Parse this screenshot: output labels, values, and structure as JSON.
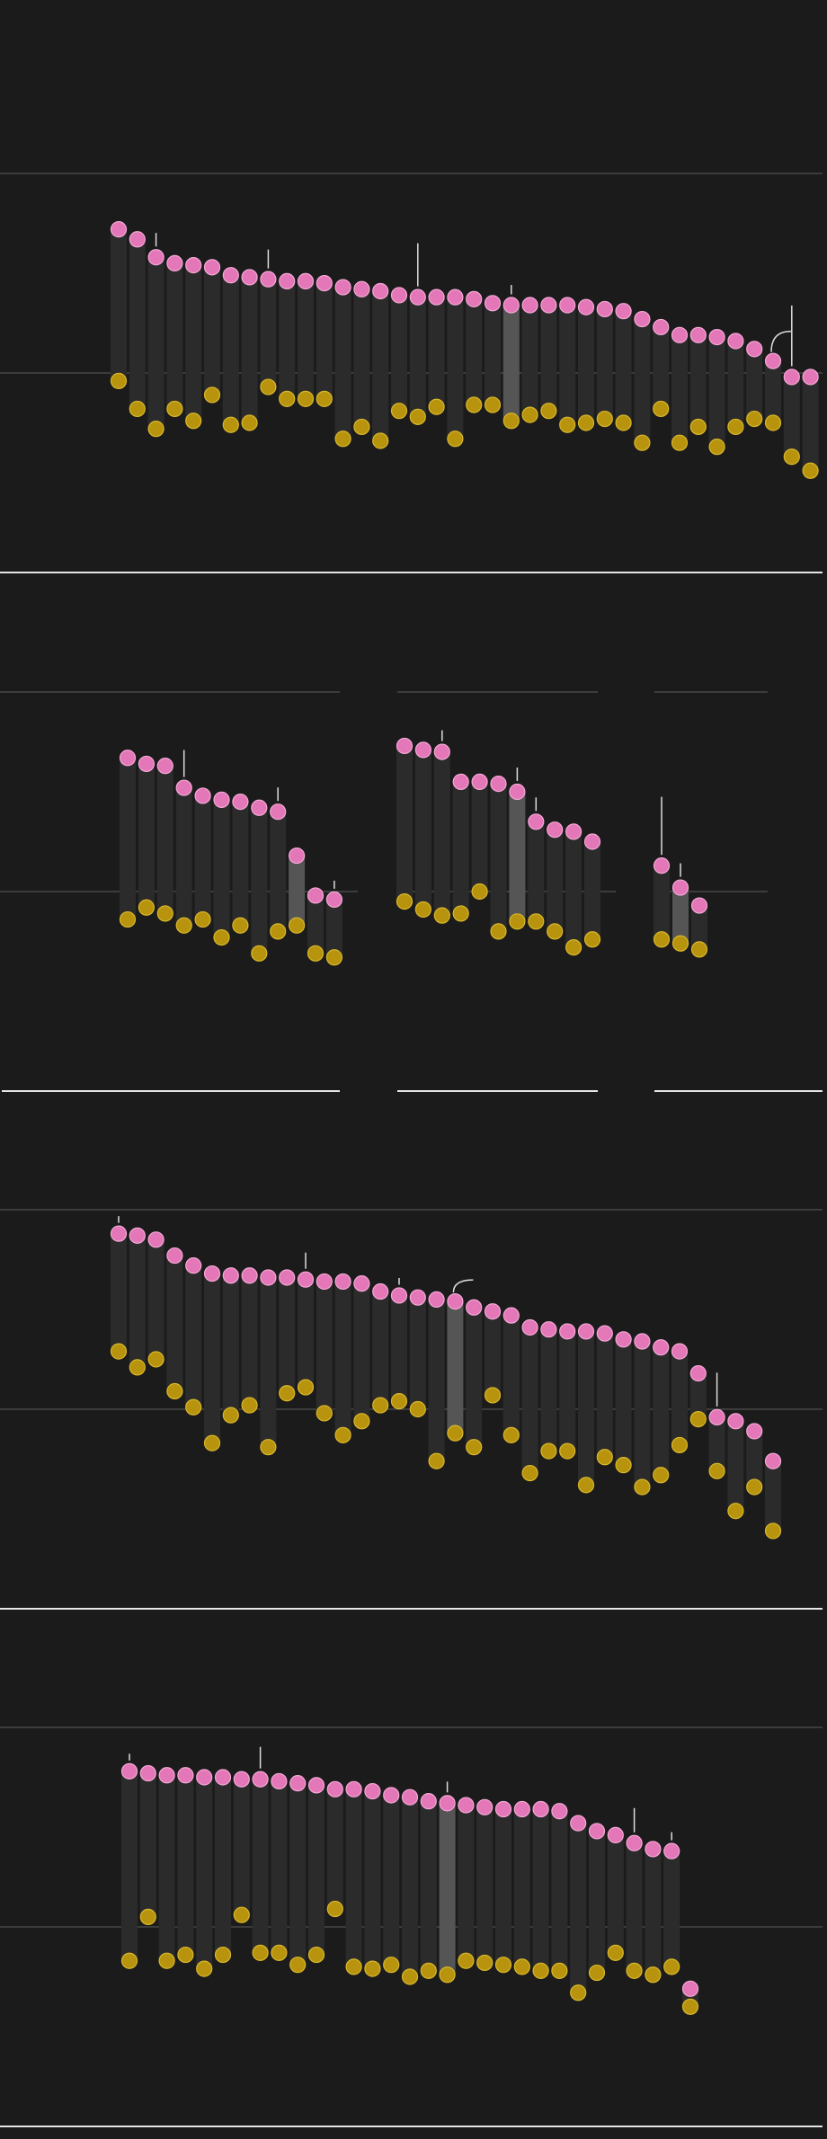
{
  "colors": {
    "background": "#1b1b1b",
    "bar": "#2b2b2b",
    "bar_highlight": "#555555",
    "pink_point": "#e377b8",
    "pink_stroke": "#f5a8d6",
    "gold_point": "#b8940e",
    "gold_stroke": "#d9b72c",
    "gridline": "#5e5e5e",
    "baseline": "#e6e6e6",
    "annotation": "#dddddd"
  },
  "chart_data": [
    {
      "type": "dot-bar",
      "ylim": [
        -55,
        100
      ],
      "grid": true,
      "series": [
        {
          "color_key": "pink",
          "values": [
            72,
            67,
            58,
            55,
            54,
            53,
            49,
            48,
            47,
            46,
            46,
            45,
            43,
            42,
            41,
            39,
            38,
            38,
            38,
            37,
            35,
            34,
            34,
            34,
            34,
            33,
            32,
            31,
            27,
            23,
            19,
            19,
            18,
            16,
            12,
            6,
            -2,
            -2
          ]
        },
        {
          "color_key": "gold",
          "values": [
            -4,
            -18,
            -28,
            -18,
            -24,
            -11,
            -26,
            -25,
            -7,
            -13,
            -13,
            -13,
            -33,
            -27,
            -34,
            -19,
            -22,
            -17,
            -33,
            -16,
            -16,
            -24,
            -21,
            -19,
            -26,
            -25,
            -23,
            -25,
            -35,
            -18,
            -35,
            -27,
            -37,
            -27,
            -23,
            -25,
            -42,
            -49
          ]
        }
      ],
      "annotations": [
        {
          "after_index": 2,
          "type": "line",
          "length": 10
        },
        {
          "after_index": 8,
          "type": "line",
          "length": 14
        },
        {
          "after_index": 16,
          "type": "line",
          "length": 32
        },
        {
          "after_index": 21,
          "type": "line",
          "length": 7
        },
        {
          "after_index": 35,
          "type": "arc",
          "length": 14
        },
        {
          "after_index": 36,
          "type": "line",
          "length": 45
        }
      ],
      "highlight_index": 21
    },
    {
      "type": "dot-bar",
      "ylim": [
        -55,
        100
      ],
      "grid": true,
      "panels": [
        {
          "series": [
            {
              "color_key": "pink",
              "values": [
                67,
                64,
                63,
                52,
                48,
                46,
                45,
                42,
                40,
                18,
                -2,
                -4
              ]
            },
            {
              "color_key": "gold",
              "values": [
                -14,
                -8,
                -11,
                -17,
                -14,
                -23,
                -17,
                -31,
                -20,
                -17,
                -31,
                -33
              ]
            }
          ],
          "highlight_index": 9
        },
        {
          "series": [
            {
              "color_key": "pink",
              "values": [
                73,
                71,
                70,
                55,
                55,
                54,
                50,
                35,
                31,
                30,
                25
              ]
            },
            {
              "color_key": "gold",
              "values": [
                -5,
                -9,
                -12,
                -11,
                0,
                -20,
                -15,
                -15,
                -20,
                -28,
                -24
              ]
            },
            {
              "color_key": "pink-annot"
            }
          ],
          "highlight_index": 6
        },
        {
          "series": [
            {
              "color_key": "pink",
              "values": [
                13,
                2,
                -7
              ]
            },
            {
              "color_key": "gold",
              "values": [
                -24,
                -26,
                -29
              ]
            }
          ],
          "highlight_index": 1
        }
      ]
    },
    {
      "type": "dot-bar",
      "ylim": [
        -55,
        100
      ],
      "grid": true,
      "series": [
        {
          "color_key": "pink",
          "values": [
            88,
            87,
            85,
            77,
            72,
            68,
            67,
            67,
            66,
            66,
            65,
            64,
            64,
            63,
            59,
            57,
            56,
            55,
            54,
            51,
            49,
            47,
            41,
            40,
            39,
            39,
            38,
            35,
            34,
            31,
            29,
            18,
            -4,
            -6,
            -11,
            -26
          ]
        },
        {
          "color_key": "gold",
          "values": [
            29,
            21,
            25,
            9,
            1,
            -17,
            -3,
            2,
            -19,
            8,
            11,
            -2,
            -13,
            -6,
            2,
            4,
            0,
            -26,
            -12,
            -19,
            7,
            -13,
            -32,
            -21,
            -21,
            -38,
            -24,
            -28,
            -39,
            -33,
            -18,
            -5,
            -31,
            -51,
            -39,
            -61
          ]
        }
      ],
      "annotations": [
        {
          "after_index": 0,
          "type": "line",
          "length": 5
        },
        {
          "after_index": 10,
          "type": "line",
          "length": 12
        },
        {
          "after_index": 15,
          "type": "line",
          "length": 5
        },
        {
          "after_index": 18,
          "type": "arc",
          "length": 8
        },
        {
          "after_index": 32,
          "type": "line",
          "length": 25
        }
      ],
      "highlight_index": 18
    },
    {
      "type": "dot-bar",
      "ylim": [
        -55,
        100
      ],
      "grid": true,
      "series": [
        {
          "color_key": "pink",
          "values": [
            78,
            77,
            76,
            76,
            75,
            75,
            74,
            74,
            73,
            72,
            71,
            69,
            69,
            68,
            66,
            65,
            63,
            62,
            61,
            60,
            59,
            59,
            59,
            58,
            52,
            48,
            46,
            42,
            39,
            38,
            -31
          ]
        },
        {
          "color_key": "gold",
          "values": [
            -17,
            5,
            -17,
            -14,
            -21,
            -14,
            6,
            -13,
            -13,
            -19,
            -14,
            9,
            -20,
            -21,
            -19,
            -25,
            -22,
            -24,
            -17,
            -18,
            -19,
            -20,
            -22,
            -22,
            -33,
            -23,
            -13,
            -22,
            -24,
            -20,
            -40
          ]
        }
      ],
      "annotations": [
        {
          "after_index": 0,
          "type": "line",
          "length": 5
        },
        {
          "after_index": 7,
          "type": "line",
          "length": 16
        },
        {
          "after_index": 17,
          "type": "line",
          "length": 8
        },
        {
          "after_index": 27,
          "type": "line",
          "length": 18
        },
        {
          "after_index": 29,
          "type": "line",
          "length": 6
        }
      ],
      "highlight_index": 17
    }
  ]
}
